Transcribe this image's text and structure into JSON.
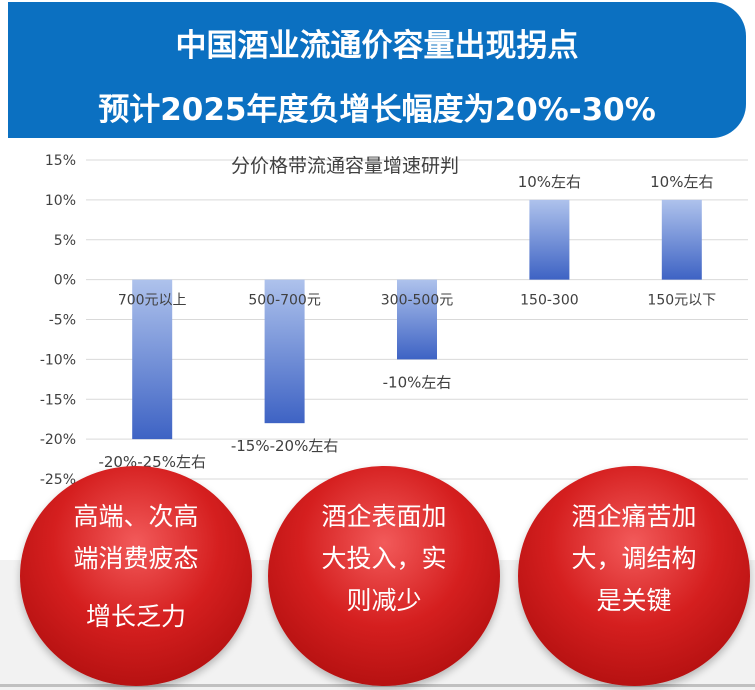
{
  "banner": {
    "line1": "中国酒业流通价容量出现拐点",
    "line2": "预计2025年度负增长幅度为20%-30%"
  },
  "chart_data": {
    "type": "bar",
    "title": "分价格带流通容量增速研判",
    "categories": [
      "700元以上",
      "500-700元",
      "300-500元",
      "150-300",
      "150元以下"
    ],
    "values": [
      -20,
      -18,
      -10,
      10,
      10
    ],
    "data_labels": [
      "-20%-25%左右",
      "-15%-20%左右",
      "-10%左右",
      "10%左右",
      "10%左右"
    ],
    "ylim": [
      -25,
      15
    ],
    "yticks": [
      15,
      10,
      5,
      0,
      -5,
      -10,
      -15,
      -20,
      -25
    ],
    "ytick_labels": [
      "15%",
      "10%",
      "5%",
      "0%",
      "-5%",
      "-10%",
      "-15%",
      "-20%",
      "-25%"
    ],
    "grid": true,
    "colors": {
      "bar_top": "#aec2ec",
      "bar_bottom": "#3e63c4",
      "grid": "#d9d9d9",
      "text": "#404040"
    }
  },
  "bubbles": [
    {
      "lines": [
        "高端、次高",
        "端消费疲态",
        "",
        "增长乏力"
      ]
    },
    {
      "lines": [
        "酒企表面加",
        "大投入，实",
        "则减少"
      ]
    },
    {
      "lines": [
        "酒企痛苦加",
        "大，调结构",
        "是关键"
      ]
    }
  ]
}
